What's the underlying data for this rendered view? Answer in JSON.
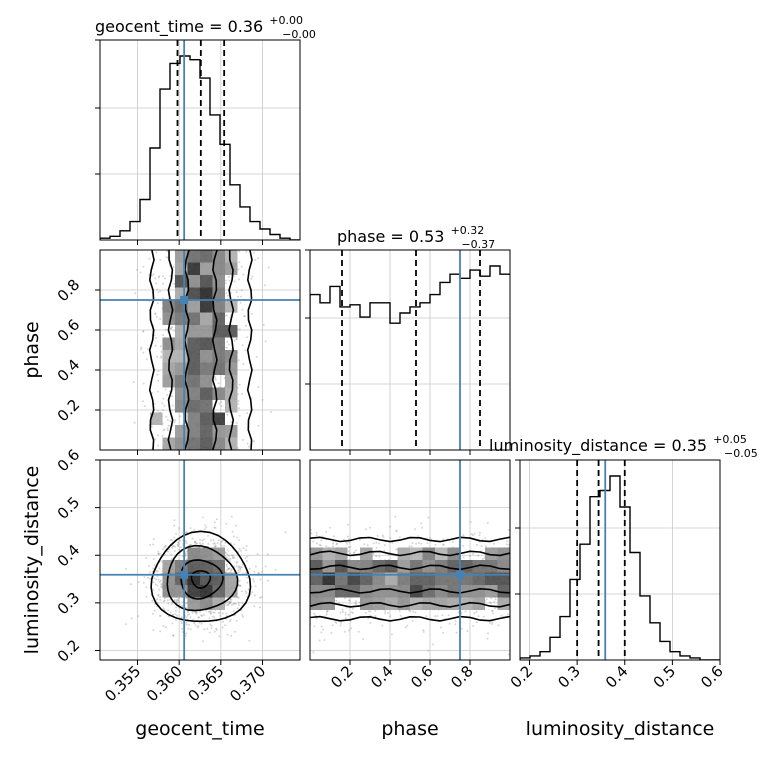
{
  "chart_data": {
    "type": "corner",
    "truth_color": "#4682b4",
    "parameters": [
      {
        "name": "geocent_time",
        "xlabel": "geocent_time",
        "range": [
          0.3505,
          0.3745
        ],
        "ticks": [
          0.355,
          0.36,
          0.365,
          0.37
        ],
        "tick_labels": [
          "0.355",
          "0.360",
          "0.365",
          "0.370"
        ],
        "truth": 0.3606,
        "quantiles": [
          0.3598,
          0.3626,
          0.3654
        ],
        "title_name": "geocent_time = 0.36",
        "title_sup": "+0.00",
        "title_sub": "−0.00"
      },
      {
        "name": "phase",
        "xlabel": "phase",
        "range": [
          0.0,
          1.0
        ],
        "ticks": [
          0.2,
          0.4,
          0.6,
          0.8
        ],
        "tick_labels": [
          "0.2",
          "0.4",
          "0.6",
          "0.8"
        ],
        "truth": 0.75,
        "quantiles": [
          0.16,
          0.53,
          0.85
        ],
        "title_name": "phase = 0.53",
        "title_sup": "+0.32",
        "title_sub": "−0.37"
      },
      {
        "name": "luminosity_distance",
        "xlabel": "luminosity_distance",
        "range": [
          0.18,
          0.6
        ],
        "ticks": [
          0.2,
          0.3,
          0.4,
          0.5,
          0.6
        ],
        "tick_labels": [
          "0.2",
          "0.3",
          "0.4",
          "0.5",
          "0.6"
        ],
        "truth": 0.359,
        "quantiles": [
          0.3,
          0.345,
          0.4
        ],
        "title_name": "luminosity_distance = 0.35",
        "title_sup": "+0.05",
        "title_sub": "−0.05"
      }
    ],
    "ylabels": [
      "phase",
      "luminosity_distance"
    ],
    "histograms": [
      {
        "param": "geocent_time",
        "bins": 20,
        "counts": [
          1,
          2,
          5,
          10,
          22,
          50,
          82,
          96,
          100,
          98,
          88,
          68,
          52,
          30,
          18,
          10,
          6,
          3,
          1,
          0
        ]
      },
      {
        "param": "phase",
        "bins": 20,
        "counts": [
          76,
          72,
          80,
          70,
          71,
          65,
          72,
          72,
          62,
          67,
          70,
          72,
          76,
          82,
          86,
          84,
          88,
          85,
          90,
          86
        ]
      },
      {
        "param": "luminosity_distance",
        "bins": 20,
        "counts": [
          1,
          2,
          4,
          11,
          21,
          39,
          56,
          79,
          82,
          89,
          74,
          52,
          31,
          18,
          9,
          4,
          2,
          1,
          0,
          0
        ]
      }
    ],
    "scatter_panels": [
      {
        "x": "geocent_time",
        "y": "phase",
        "x_mean": 0.3626,
        "x_sd": 0.0028,
        "y_uniform": true
      },
      {
        "x": "geocent_time",
        "y": "luminosity_distance",
        "x_mean": 0.3626,
        "x_sd": 0.0028,
        "y_mean": 0.35,
        "y_sd": 0.045
      },
      {
        "x": "phase",
        "y": "luminosity_distance",
        "x_uniform": true,
        "y_mean": 0.35,
        "y_sd": 0.045
      }
    ]
  }
}
